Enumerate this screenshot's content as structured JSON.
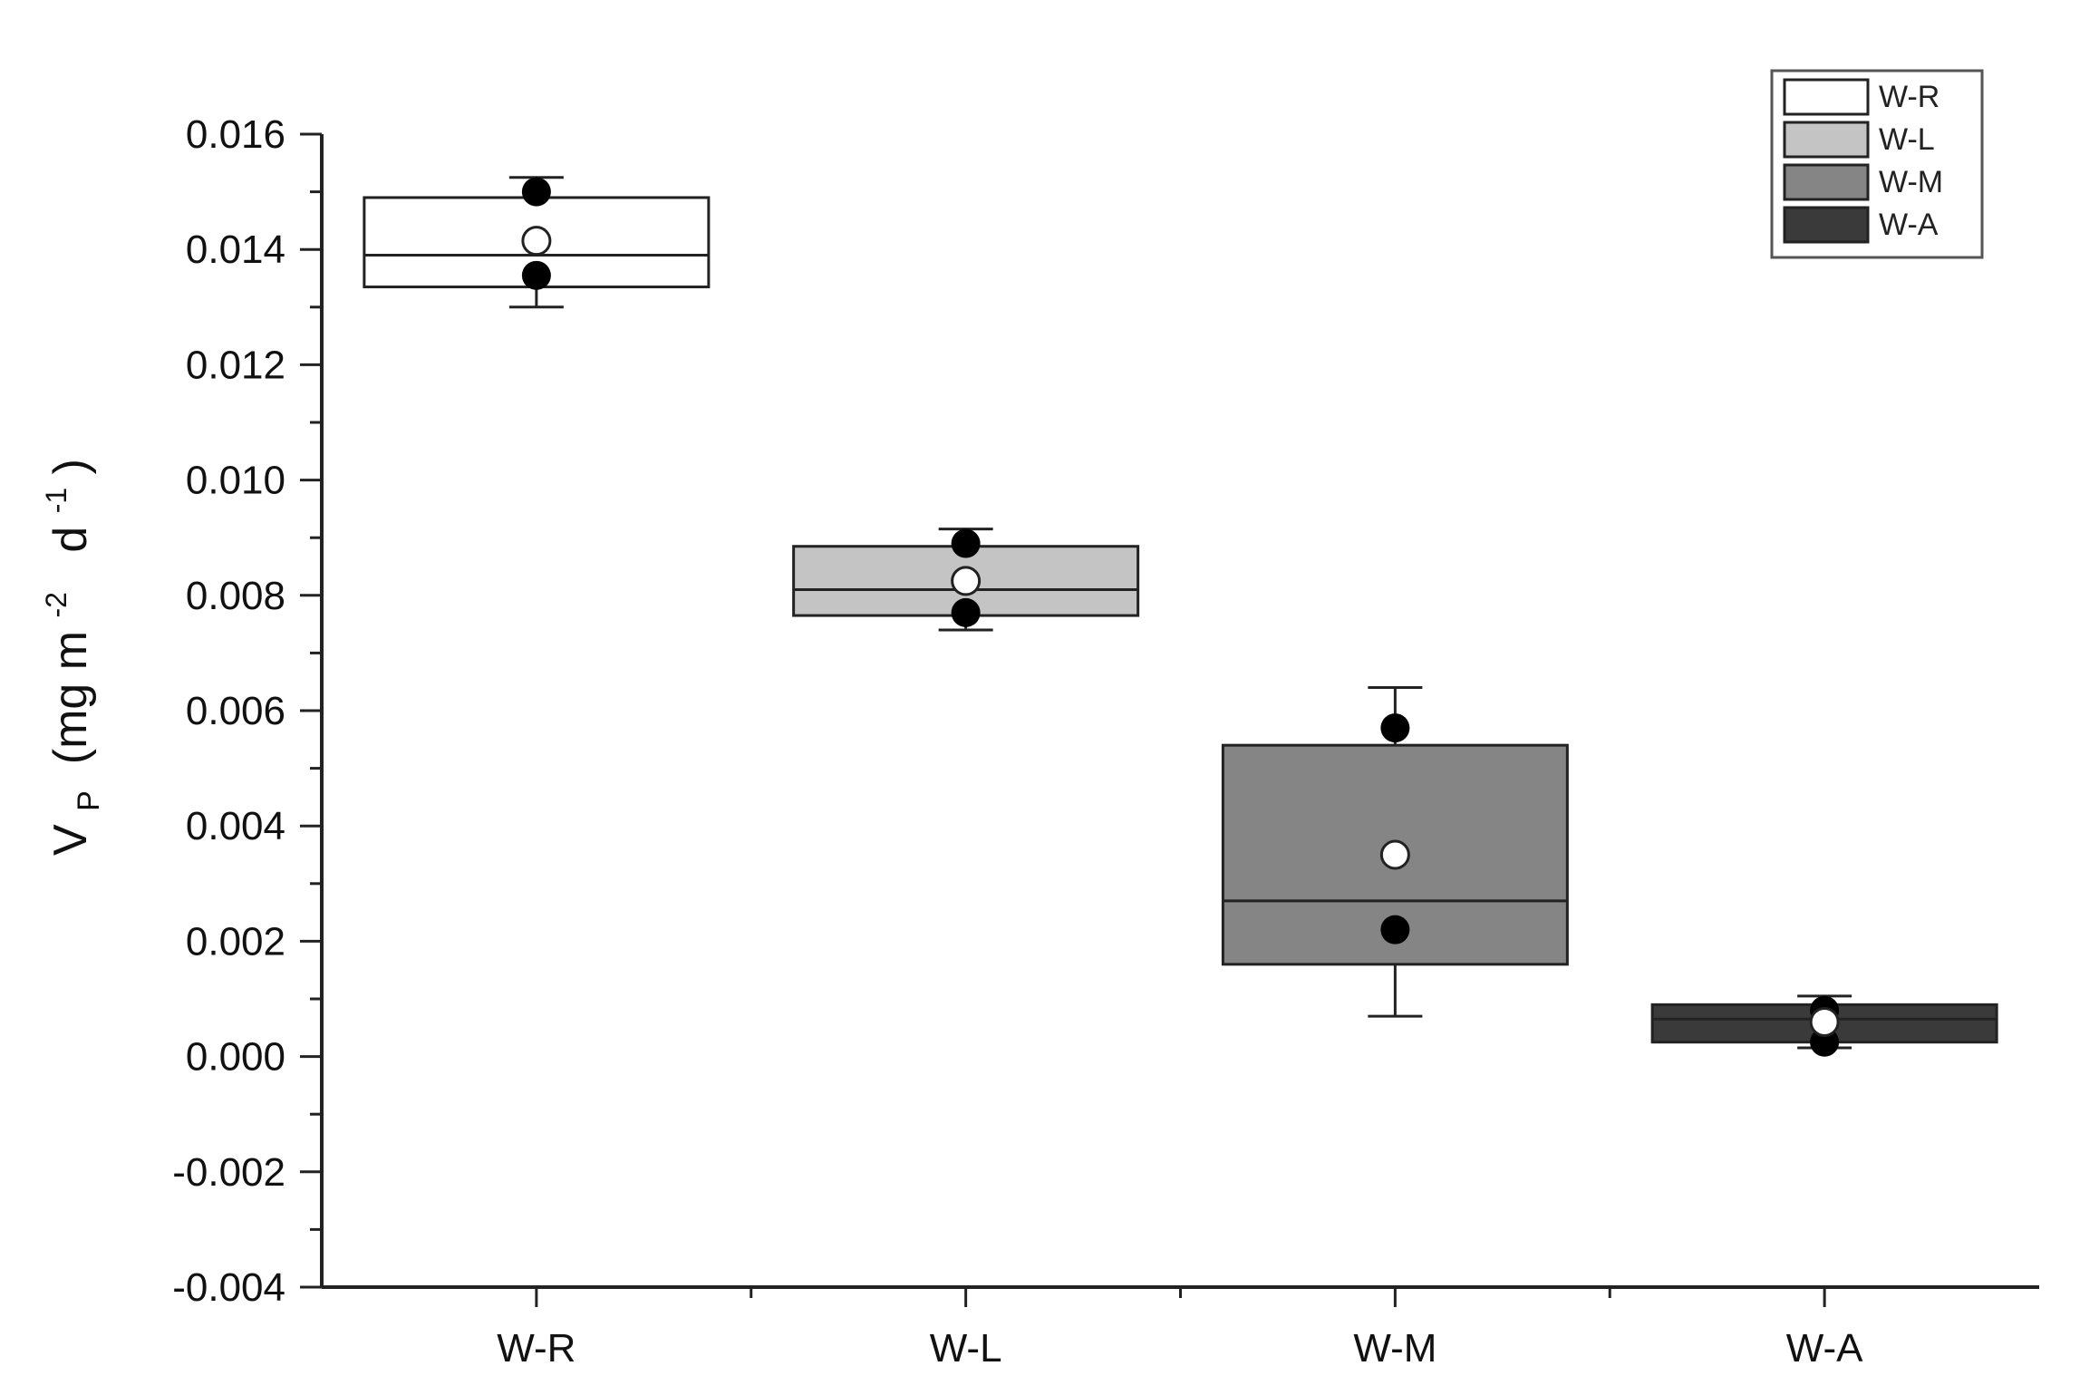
{
  "chart_data": {
    "type": "box",
    "title": "",
    "xlabel": "",
    "ylabel": {
      "main": "V",
      "sub": "P",
      "unit_prefix": " (mg m",
      "exp1": "-2",
      "unit_mid": "  d",
      "exp2": "-1",
      "unit_suffix": ")"
    },
    "ylim": [
      -0.004,
      0.016
    ],
    "yticks": [
      "0.016",
      "0.014",
      "0.012",
      "0.010",
      "0.008",
      "0.006",
      "0.004",
      "0.002",
      "0.000",
      "-0.002",
      "-0.004"
    ],
    "ytick_values": [
      0.016,
      0.014,
      0.012,
      0.01,
      0.008,
      0.006,
      0.004,
      0.002,
      0.0,
      -0.002,
      -0.004
    ],
    "categories": [
      "W-R",
      "W-L",
      "W-M",
      "W-A"
    ],
    "grid": false,
    "legend_position": "top-right",
    "series": [
      {
        "name": "W-R",
        "color": "#ffffff",
        "box_low": 0.01335,
        "box_high": 0.0149,
        "median": 0.0139,
        "whisker_low": 0.013,
        "whisker_high": 0.01525,
        "mean": 0.01415,
        "points": [
          0.015,
          0.01355
        ]
      },
      {
        "name": "W-L",
        "color": "#c4c4c4",
        "box_low": 0.00765,
        "box_high": 0.00885,
        "median": 0.0081,
        "whisker_low": 0.0074,
        "whisker_high": 0.00915,
        "mean": 0.00825,
        "points": [
          0.0089,
          0.0077
        ]
      },
      {
        "name": "W-M",
        "color": "#858585",
        "box_low": 0.0016,
        "box_high": 0.0054,
        "median": 0.0027,
        "whisker_low": 0.0007,
        "whisker_high": 0.0064,
        "mean": 0.0035,
        "points": [
          0.0057,
          0.0022
        ]
      },
      {
        "name": "W-A",
        "color": "#3a3a3a",
        "box_low": 0.00025,
        "box_high": 0.0009,
        "median": 0.00065,
        "whisker_low": 0.00015,
        "whisker_high": 0.00105,
        "mean": 0.0006,
        "points": [
          0.0008,
          0.00025
        ]
      }
    ]
  }
}
